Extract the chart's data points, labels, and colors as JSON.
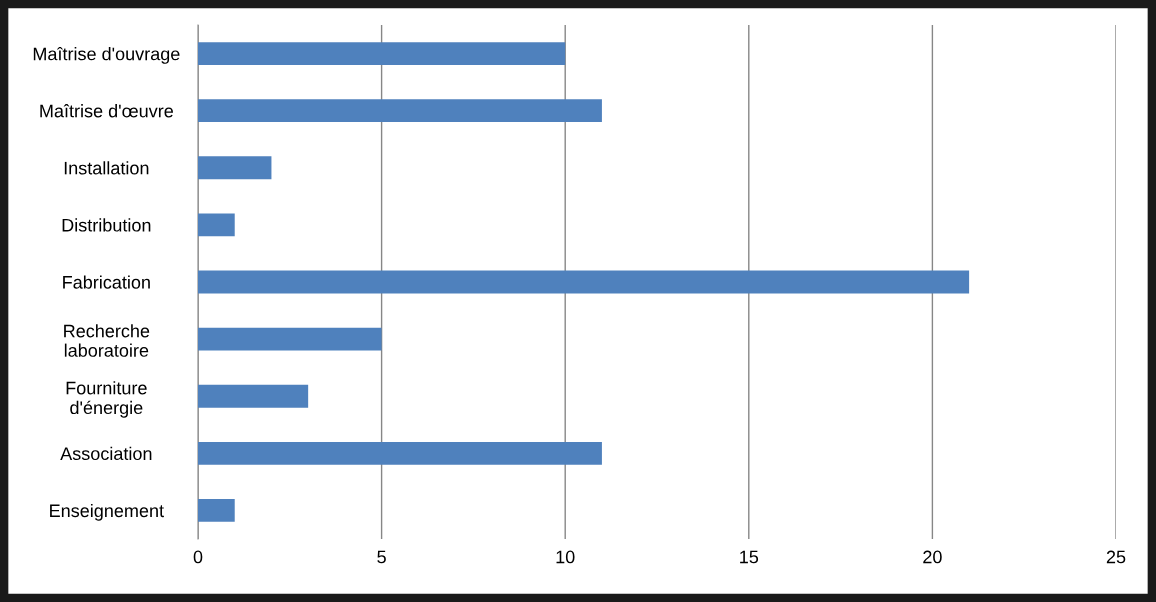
{
  "chart_data": {
    "type": "bar",
    "orientation": "horizontal",
    "categories": [
      "Maîtrise d'ouvrage",
      "Maîtrise d'œuvre",
      "Installation",
      "Distribution",
      "Fabrication",
      "Recherche\nlaboratoire",
      "Fourniture\nd'énergie",
      "Association",
      "Enseignement"
    ],
    "values": [
      10,
      11,
      2,
      1,
      21,
      5,
      3,
      11,
      1
    ],
    "color": "#4f81bd",
    "xlim": [
      0,
      25
    ],
    "xticks": [
      0,
      5,
      10,
      15,
      20,
      25
    ],
    "grid": "x",
    "legend": false
  }
}
